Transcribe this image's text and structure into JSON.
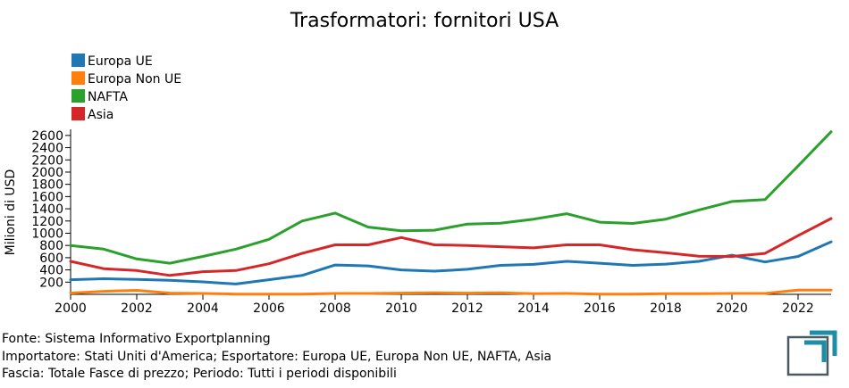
{
  "chart_data": {
    "type": "line",
    "title": "Trasformatori: fornitori USA",
    "ylabel": "Milioni di USD",
    "xlabel": "",
    "x": [
      2000,
      2001,
      2002,
      2003,
      2004,
      2005,
      2006,
      2007,
      2008,
      2009,
      2010,
      2011,
      2012,
      2013,
      2014,
      2015,
      2016,
      2017,
      2018,
      2019,
      2020,
      2021,
      2022,
      2023
    ],
    "xlim": [
      2000,
      2023
    ],
    "ylim": [
      0,
      2700
    ],
    "x_ticks": [
      2000,
      2002,
      2004,
      2006,
      2008,
      2010,
      2012,
      2014,
      2016,
      2018,
      2020,
      2022
    ],
    "y_ticks": [
      200,
      400,
      600,
      800,
      1000,
      1200,
      1400,
      1600,
      1800,
      2000,
      2200,
      2400,
      2600
    ],
    "grid": false,
    "legend_position": "top-left",
    "series": [
      {
        "name": "Europa UE",
        "color": "#1f77b4",
        "values": [
          240,
          255,
          245,
          230,
          205,
          170,
          240,
          310,
          480,
          465,
          400,
          380,
          410,
          475,
          490,
          540,
          510,
          475,
          495,
          540,
          640,
          530,
          620,
          860
        ]
      },
      {
        "name": "Europa Non UE",
        "color": "#ff7f0e",
        "values": [
          20,
          50,
          65,
          20,
          15,
          5,
          5,
          5,
          15,
          15,
          20,
          25,
          20,
          25,
          10,
          15,
          5,
          5,
          10,
          10,
          15,
          15,
          70,
          70
        ]
      },
      {
        "name": "NAFTA",
        "color": "#2ca02c",
        "values": [
          800,
          740,
          580,
          510,
          620,
          740,
          900,
          1200,
          1330,
          1100,
          1040,
          1050,
          1150,
          1165,
          1230,
          1320,
          1180,
          1160,
          1230,
          1380,
          1520,
          1550,
          2100,
          2660
        ]
      },
      {
        "name": "Asia",
        "color": "#d62728",
        "values": [
          540,
          420,
          390,
          310,
          370,
          390,
          500,
          670,
          810,
          810,
          930,
          810,
          800,
          780,
          760,
          810,
          810,
          730,
          680,
          625,
          620,
          670,
          960,
          1240
        ]
      }
    ]
  },
  "footer": {
    "line1": "Fonte: Sistema Informativo Exportplanning",
    "line2": "Importatore: Stati Uniti d'America; Esportatore: Europa UE, Europa Non UE, NAFTA, Asia",
    "line3": "Fascia: Totale Fasce di prezzo; Periodo: Tutti i periodi disponibili"
  },
  "logo": {
    "icon": "exportplanning-logo-icon",
    "color": "#1a8fa6"
  }
}
